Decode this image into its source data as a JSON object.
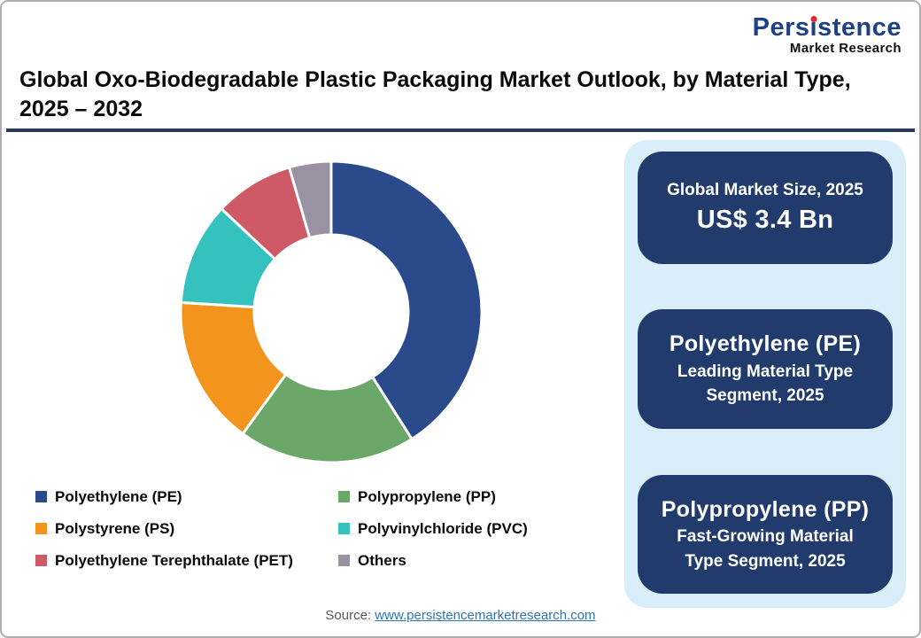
{
  "header": {
    "logo": {
      "brand": "Persistence",
      "brand_parts": [
        "Pers",
        "ı",
        "stence"
      ],
      "sub": "Market Research",
      "brand_color": "#1e4184",
      "dot_color": "#e52528"
    },
    "title": "Global Oxo-Biodegradable Plastic Packaging Market Outlook, by Material Type, 2025 – 2032",
    "underline_color": "#253a60"
  },
  "chart_data": {
    "type": "pie",
    "subtype": "donut",
    "title": "Global Oxo-Biodegradable Plastic Packaging Market Outlook, by Material Type, 2025 – 2032",
    "unit": "% market share (estimated from arc angles)",
    "start_angle_deg": 0,
    "direction": "clockwise",
    "inner_radius_ratio": 0.51,
    "grid": false,
    "legend_position": "bottom-left, two columns",
    "slices": [
      {
        "label": "Polyethylene (PE)",
        "value": 41,
        "color": "#2b4a8b"
      },
      {
        "label": "Polypropylene (PP)",
        "value": 19,
        "color": "#6ca76a"
      },
      {
        "label": "Polystyrene (PS)",
        "value": 16,
        "color": "#f3941d"
      },
      {
        "label": "Polyvinylchloride (PVC)",
        "value": 11,
        "color": "#35c1bd"
      },
      {
        "label": "Polyethylene Terephthalate (PET)",
        "value": 8.5,
        "color": "#cd5a66"
      },
      {
        "label": "Others",
        "value": 4.5,
        "color": "#9892a3"
      }
    ]
  },
  "info_panel": {
    "bg_color": "#d9eef9",
    "card_color": "#203b6c",
    "cards": [
      {
        "line1": "Global Market Size, 2025",
        "line2": "US$ 3.4 Bn"
      },
      {
        "line1": "Polyethylene (PE)",
        "line2": "Leading Material Type Segment, 2025"
      },
      {
        "line1": "Polypropylene (PP)",
        "line2": "Fast-Growing Material Type Segment, 2025"
      }
    ]
  },
  "footer": {
    "source_label": "Source:",
    "source_link": "www.persistencemarketresearch.com",
    "link_color": "#2e75b6"
  }
}
